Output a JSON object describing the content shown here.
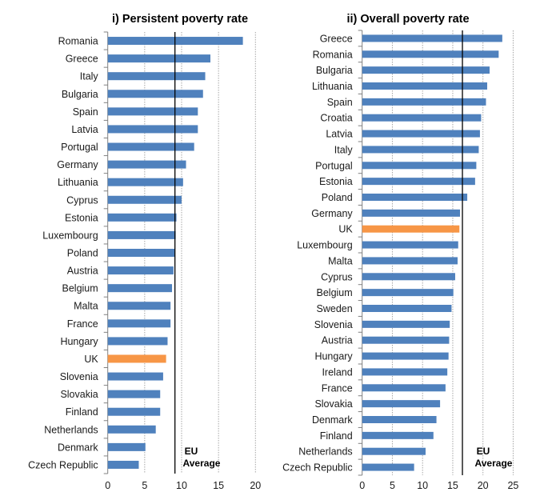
{
  "chart_data": [
    {
      "type": "bar",
      "orientation": "horizontal",
      "title": "i) Persistent poverty rate",
      "xlabel": "",
      "ylabel": "",
      "xlim": [
        0,
        20
      ],
      "xticks": [
        "0",
        "5",
        "10",
        "15",
        "20"
      ],
      "grid": "vertical dotted",
      "categories": [
        "Romania",
        "Greece",
        "Italy",
        "Bulgaria",
        "Spain",
        "Latvia",
        "Portugal",
        "Germany",
        "Lithuania",
        "Cyprus",
        "Estonia",
        "Luxembourg",
        "Poland",
        "Austria",
        "Belgium",
        "Malta",
        "France",
        "Hungary",
        "UK",
        "Slovenia",
        "Slovakia",
        "Finland",
        "Netherlands",
        "Denmark",
        "Czech Republic"
      ],
      "values": [
        18.3,
        13.9,
        13.2,
        12.9,
        12.2,
        12.2,
        11.7,
        10.6,
        10.2,
        10.0,
        9.3,
        9.2,
        9.1,
        8.9,
        8.7,
        8.5,
        8.5,
        8.1,
        7.9,
        7.5,
        7.1,
        7.1,
        6.5,
        5.1,
        4.2
      ],
      "highlight": "UK",
      "reference_line": {
        "label_line1": "EU",
        "label_line2": "Average",
        "value": 9.1
      }
    },
    {
      "type": "bar",
      "orientation": "horizontal",
      "title": "ii) Overall poverty rate",
      "xlabel": "",
      "ylabel": "",
      "xlim": [
        0,
        25
      ],
      "xticks": [
        "0",
        "5",
        "10",
        "15",
        "20",
        "25"
      ],
      "grid": "vertical dotted",
      "categories": [
        "Greece",
        "Romania",
        "Bulgaria",
        "Lithuania",
        "Spain",
        "Croatia",
        "Latvia",
        "Italy",
        "Portugal",
        "Estonia",
        "Poland",
        "Germany",
        "UK",
        "Luxembourg",
        "Malta",
        "Cyprus",
        "Belgium",
        "Sweden",
        "Slovenia",
        "Austria",
        "Hungary",
        "Ireland",
        "France",
        "Slovakia",
        "Denmark",
        "Finland",
        "Netherlands",
        "Czech Republic"
      ],
      "values": [
        23.2,
        22.6,
        21.1,
        20.7,
        20.5,
        19.7,
        19.5,
        19.3,
        18.9,
        18.7,
        17.4,
        16.2,
        16.1,
        15.9,
        15.8,
        15.4,
        15.1,
        14.8,
        14.5,
        14.4,
        14.3,
        14.1,
        13.8,
        12.9,
        12.3,
        11.8,
        10.5,
        8.6
      ],
      "highlight": "UK",
      "reference_line": {
        "label_line1": "EU",
        "label_line2": "Average",
        "value": 16.6
      }
    }
  ],
  "colors": {
    "bar": "#4F81BD",
    "highlight": "#F79646",
    "reference": "#000000",
    "grid": "#A6A6A6",
    "axis": "#808080"
  }
}
